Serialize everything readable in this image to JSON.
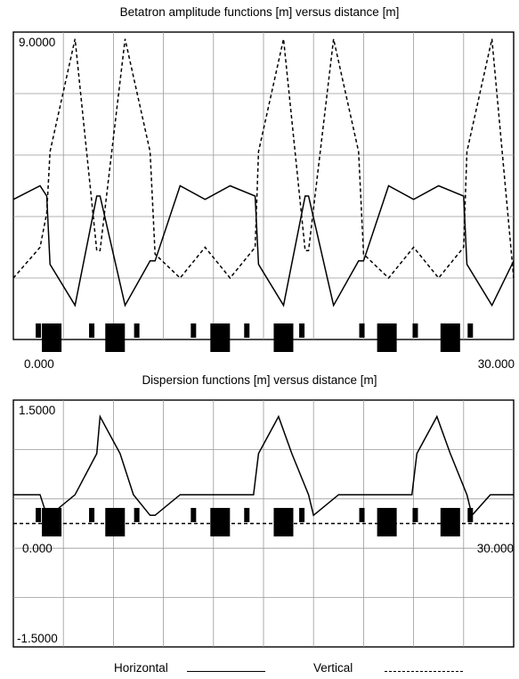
{
  "chart_data": [
    {
      "type": "line",
      "title": "Betatron amplitude functions [m] versus distance [m]",
      "ytop_label": "9.0000",
      "xmin_label": "0.000",
      "xmax_label": "30.000",
      "xlim": [
        0,
        30
      ],
      "ylim": [
        0,
        9
      ],
      "grid": true,
      "series": [
        {
          "name": "Horizontal",
          "style": "solid",
          "x": [
            0,
            1.6,
            2.0,
            2.2,
            3.7,
            5.0,
            5.2,
            6.7,
            8.2,
            8.5,
            10.0,
            11.5,
            13.0,
            14.5,
            14.7,
            16.2,
            17.5,
            17.7,
            19.2,
            20.7,
            21.0,
            22.5,
            24.0,
            25.5,
            27.0,
            27.2,
            28.7,
            30.0
          ],
          "y": [
            4.1,
            4.5,
            4.2,
            2.2,
            1.0,
            4.2,
            4.2,
            1.0,
            2.3,
            2.3,
            4.5,
            4.1,
            4.5,
            4.2,
            2.2,
            1.0,
            4.2,
            4.2,
            1.0,
            2.3,
            2.3,
            4.5,
            4.1,
            4.5,
            4.2,
            2.2,
            1.0,
            2.3
          ]
        },
        {
          "name": "Vertical",
          "style": "dashed",
          "x": [
            0,
            1.6,
            2.0,
            2.2,
            3.7,
            5.0,
            5.2,
            6.7,
            8.2,
            8.5,
            10.0,
            11.5,
            13.0,
            14.5,
            14.7,
            16.2,
            17.5,
            17.7,
            19.2,
            20.7,
            21.0,
            22.5,
            24.0,
            25.5,
            27.0,
            27.2,
            28.7,
            30.0
          ],
          "y": [
            1.8,
            2.7,
            3.7,
            5.5,
            8.8,
            2.6,
            2.6,
            8.8,
            5.5,
            2.5,
            1.8,
            2.7,
            1.8,
            2.7,
            5.5,
            8.8,
            2.6,
            2.6,
            8.8,
            5.5,
            2.5,
            1.8,
            2.7,
            1.8,
            2.7,
            5.5,
            8.8,
            1.8
          ]
        }
      ]
    },
    {
      "type": "line",
      "title": "Dispersion functions [m] versus distance [m]",
      "ytop_label": "1.5000",
      "ybottom_label": "-1.5000",
      "xmin_label": "0.000",
      "xmax_label": "30.000",
      "xlim": [
        0,
        30
      ],
      "ylim": [
        -1.5,
        1.5
      ],
      "grid": true,
      "series": [
        {
          "name": "Horizontal",
          "style": "solid",
          "x": [
            0,
            1.6,
            2.0,
            2.2,
            3.7,
            5.0,
            5.2,
            6.4,
            7.2,
            8.2,
            8.5,
            10.0,
            11.5,
            13.0,
            14.4,
            14.7,
            15.9,
            16.7,
            17.7,
            18.0,
            19.5,
            21.0,
            22.5,
            23.9,
            24.2,
            25.4,
            26.2,
            27.2,
            27.5,
            28.6,
            30.0
          ],
          "y": [
            0.35,
            0.35,
            0.1,
            0.1,
            0.35,
            0.85,
            1.3,
            0.85,
            0.35,
            0.1,
            0.1,
            0.35,
            0.35,
            0.35,
            0.35,
            0.85,
            1.3,
            0.85,
            0.35,
            0.1,
            0.35,
            0.35,
            0.35,
            0.35,
            0.85,
            1.3,
            0.85,
            0.35,
            0.1,
            0.35,
            0.35
          ]
        },
        {
          "name": "Vertical",
          "style": "dashed",
          "x": [
            0,
            30
          ],
          "y": [
            0,
            0
          ]
        }
      ]
    }
  ],
  "legend": {
    "horizontal_label": "Horizontal",
    "vertical_label": "Vertical"
  },
  "lattice_elements": {
    "quadrupoles_centers": [
      2.3,
      6.1,
      12.4,
      16.2,
      22.4,
      26.2
    ],
    "bpms": [
      1.5,
      4.7,
      7.4,
      10.8,
      14.0,
      17.3,
      20.9,
      24.1,
      27.4
    ]
  }
}
